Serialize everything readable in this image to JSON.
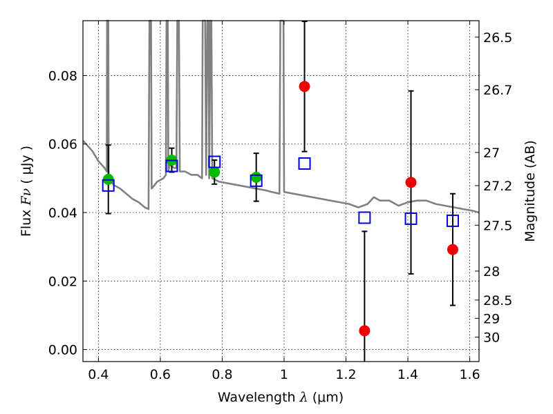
{
  "chart_data": {
    "type": "scatter",
    "xlim": [
      0.35,
      1.63
    ],
    "ylim": [
      -0.0035,
      0.096
    ],
    "grid": true,
    "x_ticks": [
      0.4,
      0.6,
      0.8,
      1.0,
      1.2,
      1.4,
      1.6
    ],
    "x_tick_labels": [
      "0.4",
      "0.6",
      "0.8",
      "1",
      "1.2",
      "1.4",
      "1.6"
    ],
    "y_ticks": [
      0.0,
      0.02,
      0.04,
      0.06,
      0.08
    ],
    "y_tick_labels": [
      "0.00",
      "0.02",
      "0.04",
      "0.06",
      "0.08"
    ],
    "xlabel": {
      "pre": "Wavelength ",
      "sym": "λ",
      "post": " (μm)"
    },
    "ylabel": {
      "pre": "Flux ",
      "sym": "Fν",
      "post": " ( μJy )"
    },
    "right_axis": {
      "label": "Magnitude (AB)",
      "tick_labels": [
        "26.5",
        "26.7",
        "27",
        "27.2",
        "27.5",
        "28",
        "28.5",
        "29",
        "30"
      ],
      "tick_values": [
        26.5,
        26.7,
        27.0,
        27.2,
        27.5,
        28.0,
        28.5,
        29.0,
        30.0
      ]
    },
    "model_spectrum": {
      "color": "#808080",
      "points": [
        [
          0.35,
          0.061
        ],
        [
          0.36,
          0.06
        ],
        [
          0.37,
          0.059
        ],
        [
          0.38,
          0.058
        ],
        [
          0.39,
          0.0565
        ],
        [
          0.4,
          0.055
        ],
        [
          0.41,
          0.054
        ],
        [
          0.42,
          0.053
        ],
        [
          0.427,
          0.052
        ],
        [
          0.428,
          0.096
        ],
        [
          0.432,
          0.096
        ],
        [
          0.433,
          0.05
        ],
        [
          0.45,
          0.048
        ],
        [
          0.47,
          0.047
        ],
        [
          0.49,
          0.0455
        ],
        [
          0.51,
          0.044
        ],
        [
          0.53,
          0.043
        ],
        [
          0.55,
          0.0415
        ],
        [
          0.562,
          0.041
        ],
        [
          0.565,
          0.096
        ],
        [
          0.57,
          0.096
        ],
        [
          0.572,
          0.047
        ],
        [
          0.59,
          0.049
        ],
        [
          0.61,
          0.05
        ],
        [
          0.618,
          0.051
        ],
        [
          0.62,
          0.096
        ],
        [
          0.624,
          0.096
        ],
        [
          0.626,
          0.052
        ],
        [
          0.63,
          0.054
        ],
        [
          0.645,
          0.053
        ],
        [
          0.652,
          0.053
        ],
        [
          0.655,
          0.096
        ],
        [
          0.66,
          0.096
        ],
        [
          0.663,
          0.052
        ],
        [
          0.68,
          0.052
        ],
        [
          0.7,
          0.051
        ],
        [
          0.72,
          0.051
        ],
        [
          0.735,
          0.05
        ],
        [
          0.737,
          0.096
        ],
        [
          0.745,
          0.096
        ],
        [
          0.748,
          0.051
        ],
        [
          0.752,
          0.096
        ],
        [
          0.756,
          0.096
        ],
        [
          0.758,
          0.05
        ],
        [
          0.762,
          0.096
        ],
        [
          0.765,
          0.096
        ],
        [
          0.768,
          0.05
        ],
        [
          0.79,
          0.049
        ],
        [
          0.82,
          0.0485
        ],
        [
          0.85,
          0.048
        ],
        [
          0.88,
          0.0475
        ],
        [
          0.91,
          0.047
        ],
        [
          0.94,
          0.0465
        ],
        [
          0.96,
          0.046
        ],
        [
          0.985,
          0.0455
        ],
        [
          0.988,
          0.096
        ],
        [
          0.998,
          0.096
        ],
        [
          1.0,
          0.046
        ],
        [
          1.03,
          0.0455
        ],
        [
          1.06,
          0.045
        ],
        [
          1.09,
          0.0445
        ],
        [
          1.12,
          0.044
        ],
        [
          1.15,
          0.0435
        ],
        [
          1.18,
          0.043
        ],
        [
          1.21,
          0.0425
        ],
        [
          1.24,
          0.0415
        ],
        [
          1.27,
          0.0425
        ],
        [
          1.29,
          0.0445
        ],
        [
          1.31,
          0.0435
        ],
        [
          1.34,
          0.0435
        ],
        [
          1.37,
          0.042
        ],
        [
          1.4,
          0.043
        ],
        [
          1.43,
          0.0435
        ],
        [
          1.46,
          0.0435
        ],
        [
          1.49,
          0.0425
        ],
        [
          1.52,
          0.042
        ],
        [
          1.55,
          0.0415
        ],
        [
          1.58,
          0.041
        ],
        [
          1.61,
          0.0405
        ],
        [
          1.63,
          0.04
        ]
      ]
    },
    "series": [
      {
        "marker": "circle",
        "color": "#00bb00",
        "points": [
          {
            "x": 0.432,
            "y": 0.0497,
            "err": 0.01
          },
          {
            "x": 0.637,
            "y": 0.0553,
            "err": 0.0035
          },
          {
            "x": 0.775,
            "y": 0.0518,
            "err": 0.0035
          },
          {
            "x": 0.91,
            "y": 0.0503,
            "err": 0.007
          }
        ]
      },
      {
        "marker": "circle",
        "color": "#ee0000",
        "points": [
          {
            "x": 1.066,
            "y": 0.0768,
            "err": 0.019
          },
          {
            "x": 1.26,
            "y": 0.0055,
            "err": 0.029
          },
          {
            "x": 1.41,
            "y": 0.0488,
            "err": 0.0267
          },
          {
            "x": 1.545,
            "y": 0.0292,
            "err": 0.0163
          }
        ]
      },
      {
        "marker": "open-square",
        "color": "#0000dd",
        "points": [
          {
            "x": 0.432,
            "y": 0.0479
          },
          {
            "x": 0.637,
            "y": 0.0536
          },
          {
            "x": 0.775,
            "y": 0.0548
          },
          {
            "x": 0.91,
            "y": 0.0493
          },
          {
            "x": 1.066,
            "y": 0.0543
          },
          {
            "x": 1.26,
            "y": 0.0385
          },
          {
            "x": 1.41,
            "y": 0.0382
          },
          {
            "x": 1.545,
            "y": 0.0376
          }
        ]
      }
    ]
  }
}
